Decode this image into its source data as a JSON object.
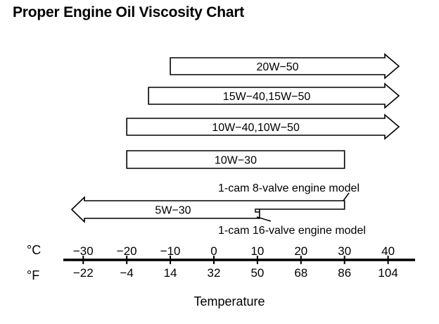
{
  "chart_data": {
    "type": "range",
    "title": "Proper Engine Oil Viscosity Chart",
    "xlabel": "Temperature",
    "unit_labels": {
      "celsius": "°C",
      "fahrenheit": "°F"
    },
    "xlim_celsius": [
      -35,
      47
    ],
    "ticks_celsius": [
      "-30",
      "-20",
      "-10",
      "0",
      "10",
      "20",
      "30",
      "40"
    ],
    "ticks_celsius_values": [
      -30,
      -20,
      -10,
      0,
      10,
      20,
      30,
      40
    ],
    "ticks_fahrenheit": [
      "-22",
      "-4",
      "14",
      "32",
      "50",
      "68",
      "86",
      "104"
    ],
    "series": [
      {
        "name": "20W-50",
        "label": "20W−50",
        "min_c": -10,
        "max_c": null,
        "open_low": false,
        "open_high": true
      },
      {
        "name": "15W-40,15W-50",
        "label": "15W−40,15W−50",
        "min_c": -15,
        "max_c": null,
        "open_low": false,
        "open_high": true
      },
      {
        "name": "10W-40,10W-50",
        "label": "10W−40,10W−50",
        "min_c": -20,
        "max_c": null,
        "open_low": false,
        "open_high": true
      },
      {
        "name": "10W-30",
        "label": "10W−30",
        "min_c": -20,
        "max_c": 30,
        "open_low": false,
        "open_high": false
      },
      {
        "name": "5W-30",
        "label": "5W−30",
        "min_c": null,
        "max_c": 30,
        "max_c_alt": 10,
        "open_low": true,
        "open_high": false
      }
    ],
    "annotations": [
      "1-cam 8-valve engine model",
      "1-cam 16-valve engine model"
    ]
  }
}
